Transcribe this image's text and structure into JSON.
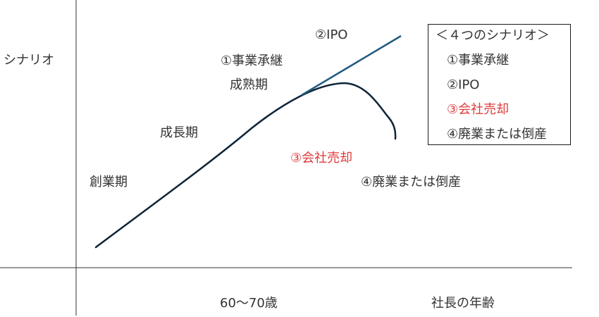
{
  "axes": {
    "y_label": "シナリオ",
    "x_tick": "60～70歳",
    "x_label": "社長の年齢"
  },
  "stages": {
    "founding": "創業期",
    "growth": "成長期",
    "maturity": "成熟期"
  },
  "scenarios": {
    "succession": "①事業承継",
    "ipo": "②IPO",
    "sale": "③会社売却",
    "closure": "④廃業または倒産"
  },
  "legend": {
    "title": "＜４つのシナリオ＞",
    "items": [
      "①事業承継",
      "②IPO",
      "③会社売却",
      "④廃業または倒産"
    ]
  },
  "colors": {
    "curve": "#0d2438",
    "ipo_line": "#1f5a80",
    "axis": "#333333",
    "highlight": "#e03a3a"
  }
}
